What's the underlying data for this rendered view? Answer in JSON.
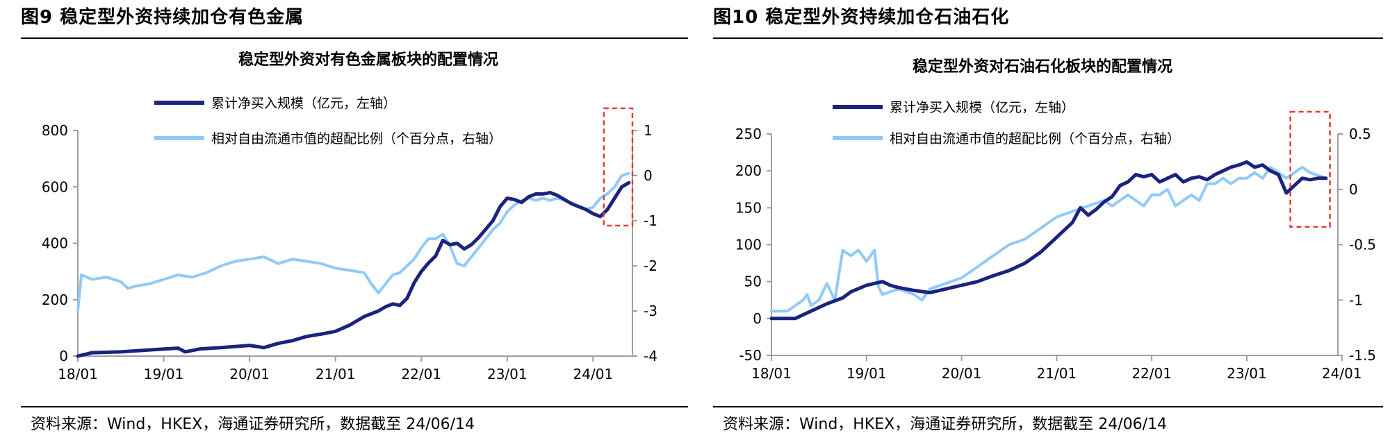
{
  "figures": [
    {
      "title": "图9  稳定型外资持续加仓有色金属",
      "source": "资料来源：Wind，HKEX，海通证券研究所，数据截至 24/06/14",
      "chart_data": {
        "type": "line",
        "title": "稳定型外资对有色金属板块的配置情况",
        "x_ticks": [
          "18/01",
          "19/01",
          "20/01",
          "21/01",
          "22/01",
          "23/01",
          "24/01"
        ],
        "y_left_ticks": [
          "800",
          "600",
          "400",
          "200",
          "0"
        ],
        "y_right_ticks": [
          "1",
          "0",
          "-1",
          "-2",
          "-3",
          "-4"
        ],
        "y_left_range": [
          0,
          800
        ],
        "y_right_range": [
          -4,
          1
        ],
        "legend_placement": "top",
        "highlight_box": "24/01 - 24/06",
        "series": [
          {
            "name": "累计净买入规模（亿元，左轴）",
            "axis": "left",
            "color": "#1a237e",
            "points": [
              [
                0,
                0
              ],
              [
                2,
                12
              ],
              [
                6,
                15
              ],
              [
                10,
                22
              ],
              [
                14,
                28
              ],
              [
                15,
                15
              ],
              [
                17,
                25
              ],
              [
                20,
                30
              ],
              [
                24,
                38
              ],
              [
                26,
                30
              ],
              [
                28,
                45
              ],
              [
                30,
                55
              ],
              [
                32,
                70
              ],
              [
                34,
                78
              ],
              [
                36,
                88
              ],
              [
                38,
                110
              ],
              [
                40,
                140
              ],
              [
                42,
                160
              ],
              [
                43,
                175
              ],
              [
                44,
                185
              ],
              [
                45,
                180
              ],
              [
                46,
                205
              ],
              [
                47,
                260
              ],
              [
                48,
                300
              ],
              [
                49,
                330
              ],
              [
                50,
                355
              ],
              [
                51,
                410
              ],
              [
                52,
                395
              ],
              [
                53,
                400
              ],
              [
                54,
                380
              ],
              [
                55,
                395
              ],
              [
                56,
                420
              ],
              [
                57,
                450
              ],
              [
                58,
                480
              ],
              [
                59,
                530
              ],
              [
                60,
                560
              ],
              [
                61,
                555
              ],
              [
                62,
                545
              ],
              [
                63,
                565
              ],
              [
                64,
                575
              ],
              [
                65,
                575
              ],
              [
                66,
                580
              ],
              [
                67,
                570
              ],
              [
                68,
                555
              ],
              [
                69,
                540
              ],
              [
                70,
                530
              ],
              [
                71,
                520
              ],
              [
                72,
                505
              ],
              [
                73,
                495
              ],
              [
                74,
                520
              ],
              [
                75,
                560
              ],
              [
                76,
                600
              ],
              [
                77,
                615
              ]
            ]
          },
          {
            "name": "相对自由流通市值的超配比例（个百分点，右轴）",
            "axis": "right",
            "color": "#90caf9",
            "points": [
              [
                0,
                -3.0
              ],
              [
                0.5,
                -2.2
              ],
              [
                2,
                -2.3
              ],
              [
                4,
                -2.25
              ],
              [
                6,
                -2.35
              ],
              [
                7,
                -2.5
              ],
              [
                8,
                -2.45
              ],
              [
                10,
                -2.4
              ],
              [
                12,
                -2.3
              ],
              [
                14,
                -2.2
              ],
              [
                16,
                -2.25
              ],
              [
                18,
                -2.15
              ],
              [
                20,
                -2.0
              ],
              [
                22,
                -1.9
              ],
              [
                24,
                -1.85
              ],
              [
                26,
                -1.8
              ],
              [
                28,
                -1.95
              ],
              [
                30,
                -1.85
              ],
              [
                32,
                -1.9
              ],
              [
                34,
                -1.95
              ],
              [
                36,
                -2.05
              ],
              [
                38,
                -2.1
              ],
              [
                40,
                -2.15
              ],
              [
                41,
                -2.4
              ],
              [
                42,
                -2.6
              ],
              [
                43,
                -2.4
              ],
              [
                44,
                -2.2
              ],
              [
                45,
                -2.15
              ],
              [
                46,
                -2.0
              ],
              [
                47,
                -1.85
              ],
              [
                48,
                -1.6
              ],
              [
                49,
                -1.4
              ],
              [
                50,
                -1.4
              ],
              [
                51,
                -1.3
              ],
              [
                52,
                -1.55
              ],
              [
                53,
                -1.95
              ],
              [
                54,
                -2.0
              ],
              [
                55,
                -1.8
              ],
              [
                56,
                -1.6
              ],
              [
                57,
                -1.4
              ],
              [
                58,
                -1.2
              ],
              [
                59,
                -1.05
              ],
              [
                60,
                -0.8
              ],
              [
                61,
                -0.65
              ],
              [
                62,
                -0.55
              ],
              [
                63,
                -0.5
              ],
              [
                64,
                -0.55
              ],
              [
                65,
                -0.5
              ],
              [
                66,
                -0.55
              ],
              [
                67,
                -0.5
              ],
              [
                68,
                -0.55
              ],
              [
                69,
                -0.6
              ],
              [
                70,
                -0.7
              ],
              [
                71,
                -0.75
              ],
              [
                72,
                -0.7
              ],
              [
                73,
                -0.5
              ],
              [
                74,
                -0.4
              ],
              [
                75,
                -0.25
              ],
              [
                76,
                0.0
              ],
              [
                77,
                0.05
              ]
            ]
          }
        ]
      }
    },
    {
      "title": "图10 稳定型外资持续加仓石油石化",
      "source": "资料来源：Wind，HKEX，海通证券研究所，数据截至 24/06/14",
      "chart_data": {
        "type": "line",
        "title": "稳定型外资对石油石化板块的配置情况",
        "x_ticks": [
          "18/01",
          "19/01",
          "20/01",
          "21/01",
          "22/01",
          "23/01",
          "24/01"
        ],
        "y_left_ticks": [
          "250",
          "200",
          "150",
          "100",
          "50",
          "0",
          "-50"
        ],
        "y_right_ticks": [
          "0.5",
          "0",
          "-0.5",
          "-1",
          "-1.5"
        ],
        "y_left_range": [
          -50,
          250
        ],
        "y_right_range": [
          -1.5,
          0.5
        ],
        "legend_placement": "top",
        "highlight_box": "24/01 - 24/06",
        "series": [
          {
            "name": "累计净买入规模（亿元，左轴）",
            "axis": "left",
            "color": "#1a237e",
            "points": [
              [
                0,
                0
              ],
              [
                3,
                0
              ],
              [
                5,
                10
              ],
              [
                7,
                20
              ],
              [
                9,
                28
              ],
              [
                10,
                36
              ],
              [
                12,
                45
              ],
              [
                14,
                50
              ],
              [
                15,
                45
              ],
              [
                16,
                42
              ],
              [
                18,
                38
              ],
              [
                20,
                35
              ],
              [
                22,
                40
              ],
              [
                24,
                45
              ],
              [
                26,
                50
              ],
              [
                28,
                58
              ],
              [
                30,
                65
              ],
              [
                32,
                75
              ],
              [
                34,
                90
              ],
              [
                36,
                110
              ],
              [
                37,
                120
              ],
              [
                38,
                130
              ],
              [
                39,
                150
              ],
              [
                40,
                140
              ],
              [
                41,
                148
              ],
              [
                42,
                158
              ],
              [
                43,
                165
              ],
              [
                44,
                180
              ],
              [
                45,
                185
              ],
              [
                46,
                195
              ],
              [
                47,
                192
              ],
              [
                48,
                195
              ],
              [
                49,
                185
              ],
              [
                50,
                190
              ],
              [
                51,
                195
              ],
              [
                52,
                185
              ],
              [
                53,
                190
              ],
              [
                54,
                192
              ],
              [
                55,
                188
              ],
              [
                56,
                195
              ],
              [
                57,
                200
              ],
              [
                58,
                205
              ],
              [
                59,
                208
              ],
              [
                60,
                212
              ],
              [
                61,
                205
              ],
              [
                62,
                208
              ],
              [
                63,
                200
              ],
              [
                64,
                195
              ],
              [
                65,
                170
              ],
              [
                66,
                180
              ],
              [
                67,
                190
              ],
              [
                68,
                188
              ],
              [
                69,
                190
              ],
              [
                70,
                190
              ]
            ]
          },
          {
            "name": "相对自由流通市值的超配比例（个百分点，右轴）",
            "axis": "right",
            "color": "#90caf9",
            "points": [
              [
                0,
                -1.1
              ],
              [
                2,
                -1.1
              ],
              [
                3,
                -1.05
              ],
              [
                4,
                -1.0
              ],
              [
                4.5,
                -0.95
              ],
              [
                5,
                -1.05
              ],
              [
                6,
                -1.0
              ],
              [
                7,
                -0.85
              ],
              [
                8,
                -1.0
              ],
              [
                9,
                -0.55
              ],
              [
                10,
                -0.6
              ],
              [
                11,
                -0.55
              ],
              [
                12,
                -0.65
              ],
              [
                13,
                -0.55
              ],
              [
                13.5,
                -0.88
              ],
              [
                14,
                -0.95
              ],
              [
                16,
                -0.9
              ],
              [
                18,
                -0.95
              ],
              [
                19,
                -1.0
              ],
              [
                20,
                -0.9
              ],
              [
                22,
                -0.85
              ],
              [
                24,
                -0.8
              ],
              [
                26,
                -0.7
              ],
              [
                28,
                -0.6
              ],
              [
                30,
                -0.5
              ],
              [
                32,
                -0.45
              ],
              [
                34,
                -0.35
              ],
              [
                36,
                -0.25
              ],
              [
                38,
                -0.2
              ],
              [
                40,
                -0.15
              ],
              [
                42,
                -0.1
              ],
              [
                43,
                -0.15
              ],
              [
                44,
                -0.1
              ],
              [
                45,
                -0.05
              ],
              [
                46,
                -0.1
              ],
              [
                47,
                -0.15
              ],
              [
                48,
                -0.05
              ],
              [
                49,
                -0.05
              ],
              [
                50,
                0.0
              ],
              [
                51,
                -0.15
              ],
              [
                52,
                -0.1
              ],
              [
                53,
                -0.05
              ],
              [
                54,
                -0.1
              ],
              [
                55,
                0.05
              ],
              [
                56,
                0.05
              ],
              [
                57,
                0.1
              ],
              [
                58,
                0.05
              ],
              [
                59,
                0.1
              ],
              [
                60,
                0.1
              ],
              [
                61,
                0.15
              ],
              [
                62,
                0.1
              ],
              [
                63,
                0.2
              ],
              [
                64,
                0.15
              ],
              [
                65,
                0.1
              ],
              [
                66,
                0.15
              ],
              [
                67,
                0.2
              ],
              [
                68,
                0.15
              ],
              [
                70,
                0.1
              ]
            ]
          }
        ]
      }
    }
  ]
}
